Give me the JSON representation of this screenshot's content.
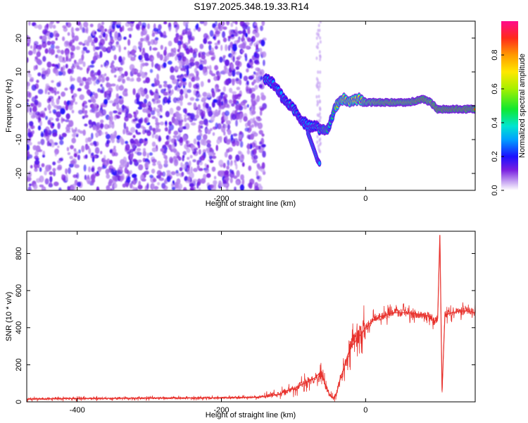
{
  "title": "S197.2025.348.19.33.R14",
  "chart_data": [
    {
      "type": "heatmap",
      "name": "spectrogram",
      "xlabel": "Height of straight line (km)",
      "ylabel": "Frequency (Hz)",
      "xlim": [
        -470,
        152
      ],
      "ylim": [
        -25,
        25
      ],
      "xticks": [
        -400,
        -200,
        0
      ],
      "xtick_labels": [
        "-400",
        "-200",
        "0"
      ],
      "yticks": [
        -20,
        -10,
        0,
        10,
        20
      ],
      "ytick_labels": [
        "-20",
        "-10",
        "0",
        "10",
        "20"
      ],
      "noise_region_x": [
        -470,
        -140
      ],
      "signal_track": {
        "x": [
          -140,
          -130,
          -120,
          -110,
          -100,
          -90,
          -80,
          -70,
          -62,
          -55,
          -50,
          -45,
          -40,
          -30,
          -20,
          -10,
          0,
          20,
          40,
          60,
          80,
          90,
          100,
          110,
          130,
          152
        ],
        "freq_hz": [
          8,
          7,
          4,
          1,
          -1,
          -4,
          -6,
          -6,
          -7,
          -8,
          -6,
          -2,
          0,
          2,
          1,
          2,
          1,
          1,
          1,
          1,
          2,
          1,
          -1,
          -1,
          -1,
          -1
        ],
        "amplitude": [
          0.35,
          0.3,
          0.3,
          0.3,
          0.35,
          0.3,
          0.3,
          0.35,
          0.4,
          0.5,
          0.4,
          0.45,
          0.6,
          0.7,
          0.7,
          0.7,
          0.75,
          0.8,
          0.8,
          0.8,
          0.85,
          0.8,
          0.85,
          0.85,
          0.85,
          0.85
        ]
      },
      "secondary_branch": {
        "x": [
          -80,
          -75,
          -70,
          -67,
          -64
        ],
        "freq_hz": [
          -8,
          -11,
          -14,
          -16,
          -17
        ]
      },
      "colorbar": {
        "label": "Normalized spectral amplitude",
        "range": [
          0.0,
          1.0
        ],
        "ticks": [
          0.0,
          0.2,
          0.4,
          0.6,
          0.8
        ],
        "tick_labels": [
          "0.0",
          "0.2",
          "0.4",
          "0.6",
          "0.8"
        ]
      }
    },
    {
      "type": "line",
      "name": "snr",
      "xlabel": "Height of straight line (km)",
      "ylabel": "SNR (10 * v/v)",
      "xlim": [
        -470,
        152
      ],
      "ylim": [
        0,
        920
      ],
      "xticks": [
        -400,
        -200,
        0
      ],
      "xtick_labels": [
        "-400",
        "-200",
        "0"
      ],
      "yticks": [
        0,
        200,
        400,
        600,
        800
      ],
      "ytick_labels": [
        "0",
        "200",
        "400",
        "600",
        "800"
      ],
      "color": "#e8322d",
      "series": [
        {
          "name": "SNR",
          "x": [
            -470,
            -400,
            -300,
            -200,
            -150,
            -120,
            -110,
            -100,
            -90,
            -80,
            -70,
            -65,
            -60,
            -55,
            -50,
            -45,
            -40,
            -35,
            -30,
            -25,
            -20,
            -15,
            -10,
            -5,
            0,
            5,
            10,
            20,
            30,
            40,
            60,
            80,
            90,
            95,
            100,
            103,
            106,
            110,
            120,
            130,
            140,
            152
          ],
          "y": [
            15,
            18,
            20,
            22,
            25,
            40,
            60,
            70,
            90,
            110,
            130,
            150,
            140,
            80,
            40,
            20,
            50,
            130,
            180,
            250,
            300,
            320,
            350,
            370,
            400,
            420,
            440,
            460,
            470,
            480,
            480,
            470,
            460,
            430,
            450,
            900,
            60,
            470,
            480,
            490,
            490,
            480
          ]
        }
      ]
    }
  ]
}
